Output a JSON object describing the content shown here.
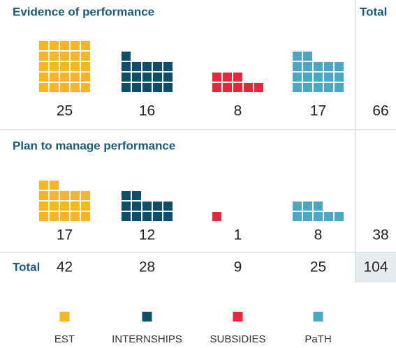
{
  "chart_data": {
    "type": "waffle",
    "categories": [
      "EST",
      "INTERNSHIPS",
      "SUBSIDIES",
      "PaTH"
    ],
    "colors": [
      "#f7b523",
      "#0d4f6b",
      "#e8283a",
      "#4aa8c4"
    ],
    "total_header": "Total",
    "series": [
      {
        "name": "Evidence of performance",
        "values": [
          25,
          16,
          8,
          17
        ],
        "total": 66
      },
      {
        "name": "Plan to manage performance",
        "values": [
          17,
          12,
          1,
          8
        ],
        "total": 38
      }
    ],
    "totals_label": "Total",
    "column_totals": [
      42,
      28,
      9,
      25
    ],
    "grand_total": 104
  }
}
